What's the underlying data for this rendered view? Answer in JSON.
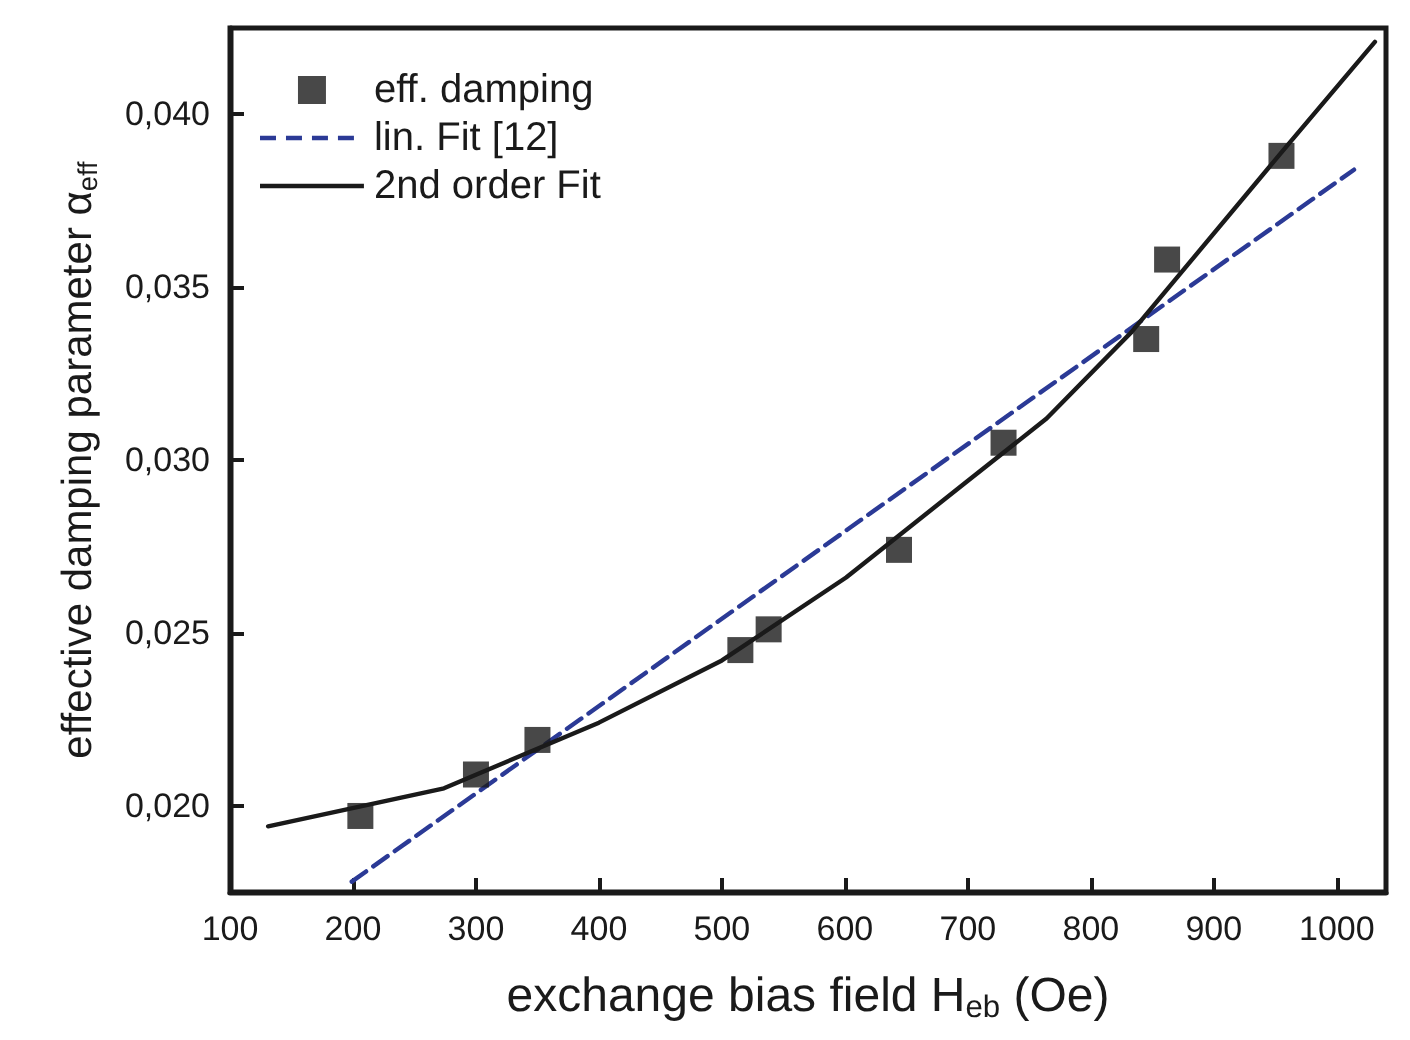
{
  "chart_data": {
    "type": "scatter",
    "xlabel": "exchange bias field H$_{eb}$ (Oe)",
    "ylabel": "effective damping parameter α$_{eff}$",
    "xlim": [
      100,
      1040
    ],
    "xticks": [
      100,
      200,
      300,
      400,
      500,
      600,
      700,
      800,
      900,
      1000
    ],
    "ylim": [
      0.0175,
      0.0425
    ],
    "yticks": [
      {
        "value": 0.02,
        "label": "0,020"
      },
      {
        "value": 0.025,
        "label": "0,025"
      },
      {
        "value": 0.03,
        "label": "0,030"
      },
      {
        "value": 0.035,
        "label": "0,035"
      },
      {
        "value": 0.04,
        "label": "0,040"
      }
    ],
    "grid": false,
    "legend": "top left",
    "series": [
      {
        "name": "eff. damping",
        "type": "scatter",
        "marker": "square",
        "color": "#1a1a1a",
        "x": [
          206,
          300,
          350,
          515,
          538,
          644,
          729,
          845,
          862,
          955
        ],
        "values": [
          0.0197,
          0.0209,
          0.0219,
          0.0245,
          0.0251,
          0.0274,
          0.0305,
          0.0335,
          0.0358,
          0.0388
        ]
      },
      {
        "name": "lin. Fit [12]",
        "type": "line",
        "marker": "none",
        "line_style": "dashed",
        "color": "#2b3a96",
        "x": [
          199,
          1014
        ],
        "values": [
          0.0178,
          0.0384
        ]
      },
      {
        "name": "2nd order Fit",
        "type": "line",
        "marker": "none",
        "line_style": "solid",
        "color": "#1a1a1a",
        "x": [
          131,
          274,
          400,
          500,
          601,
          700,
          764,
          833,
          955,
          1031
        ],
        "values": [
          0.0194,
          0.0205,
          0.0224,
          0.0242,
          0.0266,
          0.0294,
          0.0312,
          0.0337,
          0.0389,
          0.0421
        ]
      }
    ]
  }
}
